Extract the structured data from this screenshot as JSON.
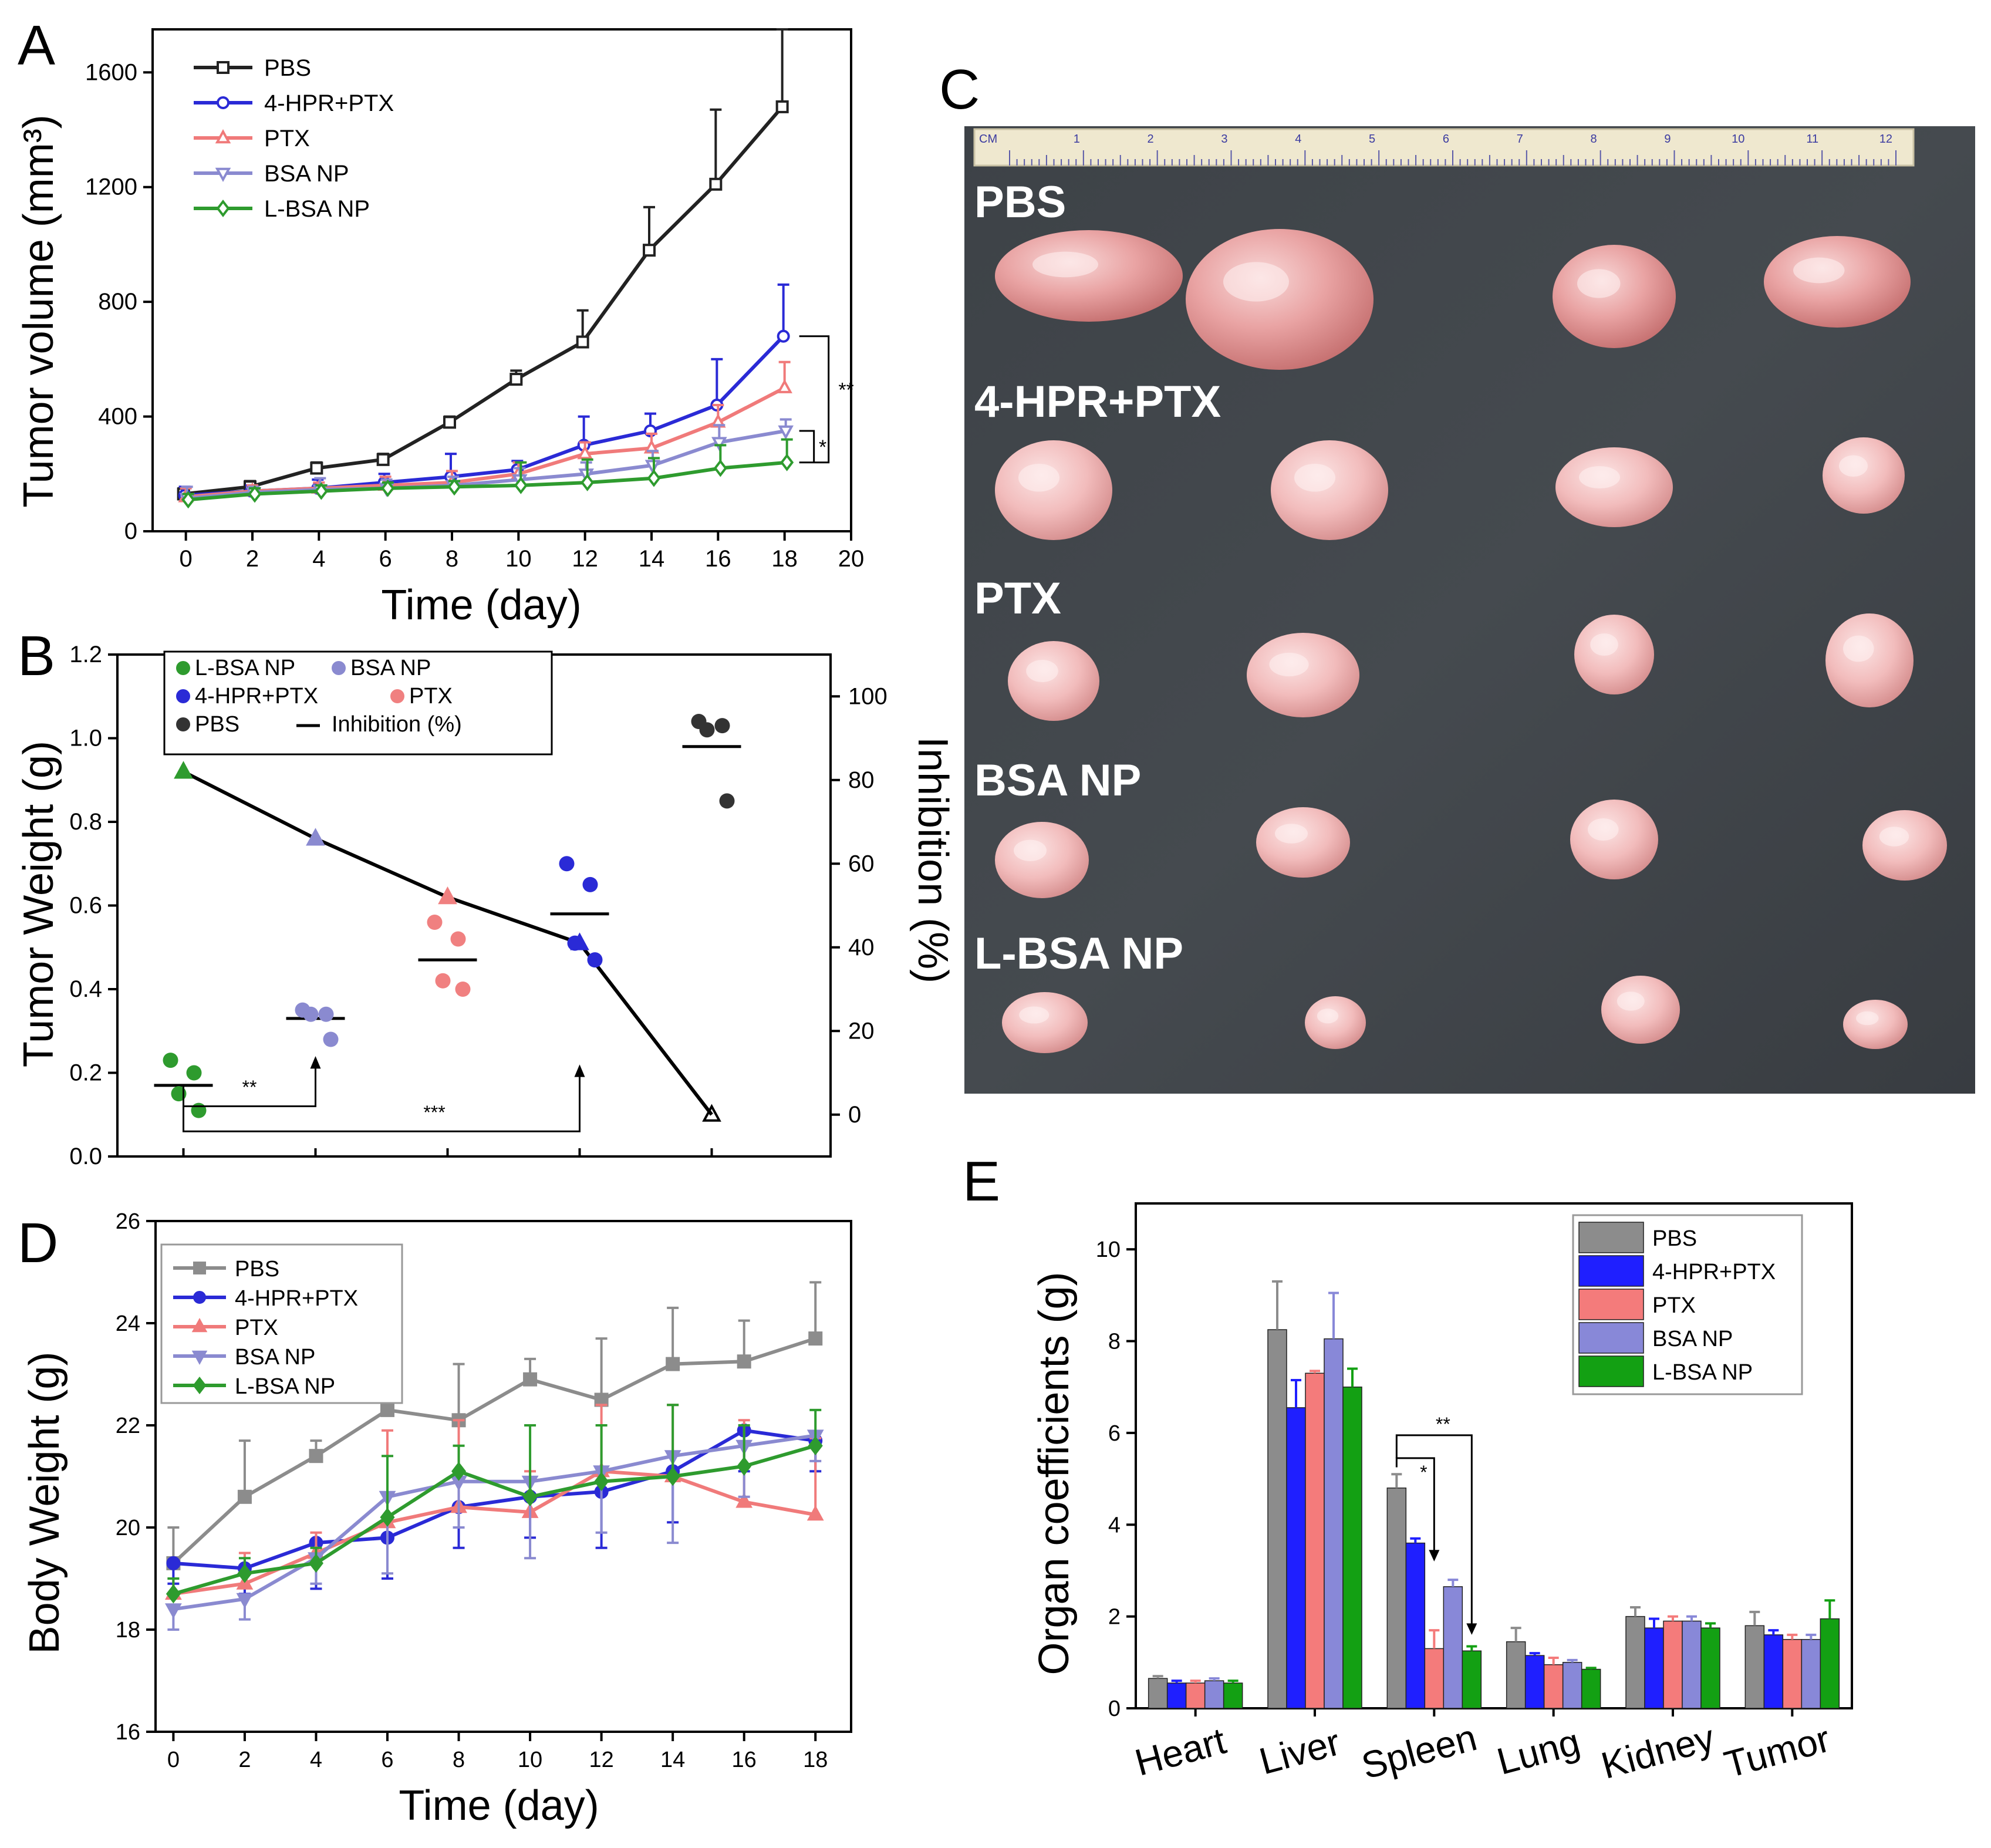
{
  "panels": {
    "A": {
      "letter": "A",
      "chart_data": {
        "type": "line",
        "xlabel": "Time (day)",
        "ylabel": "Tumor volume (mm³)",
        "xlim": [
          -1,
          20
        ],
        "ylim": [
          0,
          1750
        ],
        "xticks": [
          0,
          2,
          4,
          6,
          8,
          10,
          12,
          14,
          16,
          18,
          20
        ],
        "yticks": [
          0,
          400,
          800,
          1200,
          1600
        ],
        "x": [
          0,
          2,
          4,
          6,
          8,
          10,
          12,
          14,
          16,
          18
        ],
        "legend_position": "top-left",
        "series": [
          {
            "name": "PBS",
            "color": "#222222",
            "marker": "square",
            "values": [
              130,
              155,
              220,
              250,
              380,
              530,
              660,
              980,
              1210,
              1480
            ],
            "errors": [
              20,
              20,
              20,
              20,
              20,
              30,
              110,
              150,
              260,
              270
            ]
          },
          {
            "name": "4-HPR+PTX",
            "color": "#2a2ad6",
            "marker": "circle",
            "values": [
              125,
              140,
              150,
              170,
              190,
              215,
              300,
              350,
              440,
              680
            ],
            "errors": [
              30,
              20,
              30,
              30,
              80,
              30,
              100,
              60,
              160,
              180
            ]
          },
          {
            "name": "PTX",
            "color": "#f07a7a",
            "marker": "triangle-up",
            "values": [
              120,
              140,
              150,
              160,
              170,
              200,
              270,
              290,
              380,
              500
            ],
            "errors": [
              30,
              20,
              20,
              30,
              40,
              40,
              40,
              50,
              60,
              90
            ]
          },
          {
            "name": "BSA NP",
            "color": "#8a8ad0",
            "marker": "triangle-down",
            "values": [
              115,
              135,
              145,
              150,
              160,
              180,
              200,
              230,
              310,
              350
            ],
            "errors": [
              40,
              20,
              40,
              30,
              30,
              40,
              40,
              50,
              60,
              40
            ]
          },
          {
            "name": "L-BSA NP",
            "color": "#2e9b2e",
            "marker": "diamond",
            "values": [
              110,
              130,
              140,
              150,
              155,
              160,
              170,
              185,
              220,
              240
            ],
            "errors": [
              20,
              20,
              20,
              20,
              20,
              80,
              80,
              70,
              80,
              80
            ]
          }
        ],
        "annotations": [
          "**",
          "*"
        ]
      }
    },
    "B": {
      "letter": "B",
      "chart_data": {
        "type": "scatter",
        "ylabel": "Tumor Weight (g)",
        "y2label": "Inhibition (%)",
        "ylim": [
          0,
          1.2
        ],
        "y2lim": [
          -10,
          110
        ],
        "yticks": [
          0.0,
          0.2,
          0.4,
          0.6,
          0.8,
          1.0,
          1.2
        ],
        "y2ticks": [
          0,
          20,
          40,
          60,
          80,
          100
        ],
        "legend_position": "top-left",
        "groups": [
          {
            "name": "L-BSA NP",
            "color": "#2e9b2e",
            "points": [
              0.23,
              0.2,
              0.15,
              0.11
            ],
            "mean": 0.17
          },
          {
            "name": "BSA NP",
            "color": "#8a8ad0",
            "points": [
              0.35,
              0.34,
              0.34,
              0.28
            ],
            "mean": 0.33
          },
          {
            "name": "PTX",
            "color": "#f08080",
            "points": [
              0.56,
              0.52,
              0.42,
              0.4
            ],
            "mean": 0.47
          },
          {
            "name": "4-HPR+PTX",
            "color": "#2a2ad6",
            "points": [
              0.7,
              0.65,
              0.51,
              0.47
            ],
            "mean": 0.58
          },
          {
            "name": "PBS",
            "color": "#333333",
            "points": [
              1.04,
              1.03,
              1.02,
              0.85
            ],
            "mean": 0.98
          }
        ],
        "inhibition": {
          "name": "Inhibition (%)",
          "values": [
            82,
            66,
            52,
            41,
            0
          ]
        },
        "annotations": [
          "**",
          "***"
        ]
      }
    },
    "C": {
      "letter": "C",
      "ruler_unit": "CM",
      "ruler_numbers": [
        "1",
        "2",
        "3",
        "4",
        "5",
        "6",
        "7",
        "8",
        "9",
        "10",
        "11",
        "12"
      ],
      "rows": [
        "PBS",
        "4-HPR+PTX",
        "PTX",
        "BSA NP",
        "L-BSA NP"
      ]
    },
    "D": {
      "letter": "D",
      "chart_data": {
        "type": "line",
        "xlabel": "Time (day)",
        "ylabel": "Body Weight (g)",
        "xlim": [
          -0.5,
          19
        ],
        "ylim": [
          16,
          26
        ],
        "xticks": [
          0,
          2,
          4,
          6,
          8,
          10,
          12,
          14,
          16,
          18
        ],
        "yticks": [
          16,
          18,
          20,
          22,
          24,
          26
        ],
        "x": [
          0,
          2,
          4,
          6,
          8,
          10,
          12,
          14,
          16,
          18
        ],
        "legend_position": "top-left",
        "series": [
          {
            "name": "PBS",
            "color": "#8c8c8c",
            "marker": "square",
            "values": [
              19.3,
              20.6,
              21.4,
              22.3,
              22.1,
              22.9,
              22.5,
              23.2,
              23.25,
              23.7
            ],
            "errors": [
              0.7,
              1.1,
              0.3,
              0.8,
              1.1,
              0.4,
              1.2,
              1.1,
              0.8,
              1.1
            ]
          },
          {
            "name": "4-HPR+PTX",
            "color": "#2a2ad6",
            "marker": "circle",
            "values": [
              19.3,
              19.2,
              19.7,
              19.8,
              20.4,
              20.6,
              20.7,
              21.1,
              21.9,
              21.7
            ],
            "errors": [
              0.4,
              0.5,
              0.9,
              0.8,
              0.8,
              0.8,
              1.1,
              1.0,
              0.8,
              0.6
            ]
          },
          {
            "name": "PTX",
            "color": "#f07a7a",
            "marker": "triangle-up",
            "values": [
              18.7,
              18.9,
              19.5,
              20.1,
              20.4,
              20.3,
              21.1,
              21.0,
              20.5,
              20.25
            ],
            "errors": [
              0.3,
              0.6,
              0.4,
              1.8,
              1.7,
              0.8,
              1.3,
              1.4,
              1.6,
              1.5
            ]
          },
          {
            "name": "BSA NP",
            "color": "#8a8ad0",
            "marker": "triangle-down",
            "values": [
              18.4,
              18.6,
              19.4,
              20.6,
              20.9,
              20.9,
              21.1,
              21.4,
              21.6,
              21.8
            ],
            "errors": [
              0.4,
              0.4,
              0.5,
              1.5,
              0.9,
              1.5,
              1.2,
              1.7,
              1.0,
              0.5
            ]
          },
          {
            "name": "L-BSA NP",
            "color": "#2e9b2e",
            "marker": "diamond",
            "values": [
              18.7,
              19.1,
              19.3,
              20.2,
              21.1,
              20.6,
              20.9,
              21.0,
              21.2,
              21.6
            ],
            "errors": [
              0.3,
              0.3,
              0.3,
              1.2,
              0.5,
              1.4,
              1.1,
              1.4,
              0.8,
              0.7
            ]
          }
        ]
      }
    },
    "E": {
      "letter": "E",
      "chart_data": {
        "type": "bar",
        "ylabel": "Organ coefficients (g)",
        "ylim": [
          0,
          11
        ],
        "yticks": [
          0,
          2,
          4,
          6,
          8,
          10
        ],
        "categories": [
          "Heart",
          "Liver",
          "Spleen",
          "Lung",
          "Kidney",
          "Tumor"
        ],
        "legend_position": "top-right",
        "series": [
          {
            "name": "PBS",
            "color": "#8c8c8c",
            "values": [
              0.65,
              8.25,
              4.8,
              1.45,
              2.0,
              1.8
            ],
            "errors": [
              0.05,
              1.05,
              0.3,
              0.3,
              0.2,
              0.3
            ]
          },
          {
            "name": "4-HPR+PTX",
            "color": "#1f1fff",
            "values": [
              0.55,
              6.55,
              3.6,
              1.15,
              1.75,
              1.6
            ],
            "errors": [
              0.05,
              0.6,
              0.1,
              0.05,
              0.2,
              0.1
            ]
          },
          {
            "name": "PTX",
            "color": "#f47b7b",
            "values": [
              0.55,
              7.3,
              1.3,
              0.95,
              1.9,
              1.5
            ],
            "errors": [
              0.05,
              0.05,
              0.4,
              0.15,
              0.1,
              0.1
            ]
          },
          {
            "name": "BSA NP",
            "color": "#8888d8",
            "values": [
              0.6,
              8.05,
              2.65,
              1.0,
              1.9,
              1.5
            ],
            "errors": [
              0.05,
              1.0,
              0.15,
              0.05,
              0.1,
              0.1
            ]
          },
          {
            "name": "L-BSA NP",
            "color": "#13a013",
            "values": [
              0.55,
              7.0,
              1.25,
              0.85,
              1.75,
              1.95
            ],
            "errors": [
              0.05,
              0.4,
              0.1,
              0.03,
              0.1,
              0.4
            ]
          }
        ],
        "annotations": [
          "*",
          "**"
        ]
      }
    }
  }
}
